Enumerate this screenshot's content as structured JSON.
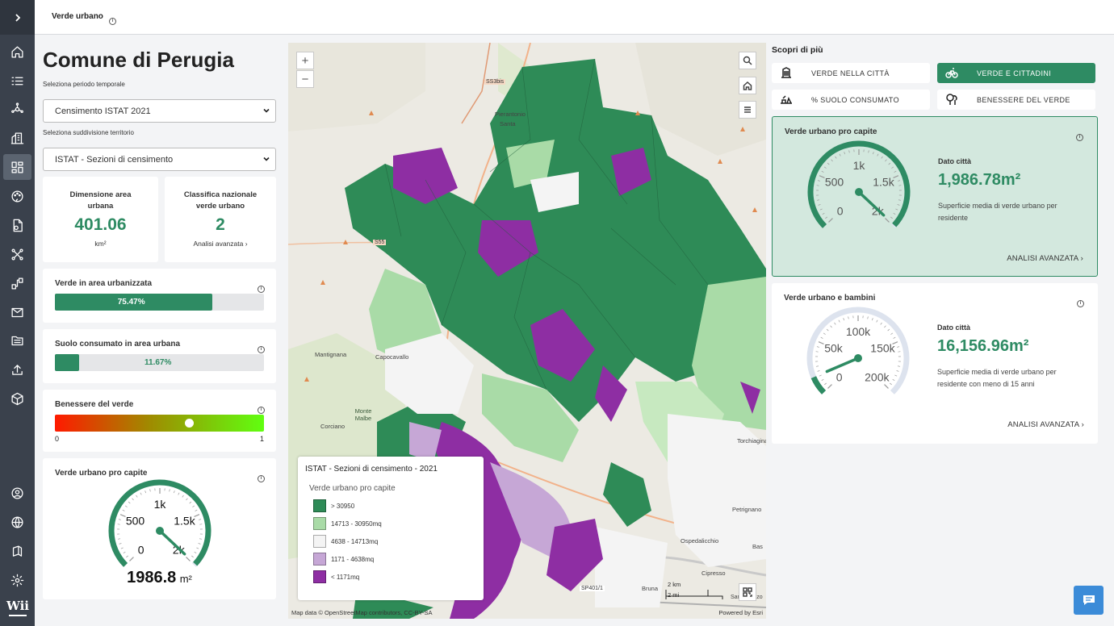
{
  "topbar": {
    "title": "Verde urbano"
  },
  "sidebar": {
    "items": [
      "home-icon",
      "list-icon",
      "network-icon",
      "buildings-icon",
      "dashboard-icon",
      "palette-icon",
      "document-icon",
      "connections-icon",
      "share-icon",
      "mail-icon",
      "folder-icon",
      "upload-icon",
      "cube-icon"
    ],
    "bottom": [
      "user-icon",
      "globe-icon",
      "book-icon",
      "settings-icon"
    ],
    "logo": "Wii"
  },
  "left": {
    "title": "Comune di Perugia",
    "period_label": "Seleziona periodo temporale",
    "period_value": "Censimento ISTAT 2021",
    "subdiv_label": "Seleziona suddivisione territorio",
    "subdiv_value": "ISTAT - Sezioni di censimento",
    "stat1": {
      "title": "Dimensione area urbana",
      "value": "401.06",
      "unit": "km²"
    },
    "stat2": {
      "title": "Classifica nazionale verde urbano",
      "value": "2",
      "link": "Analisi avanzata ›"
    },
    "green_urban": {
      "title": "Verde in area urbanizzata",
      "value": "75.47%",
      "fraction": 0.7547
    },
    "soil": {
      "title": "Suolo consumato in area urbana",
      "value": "11.67%",
      "fraction": 0.1167
    },
    "wellbeing": {
      "title": "Benessere del verde",
      "min": "0",
      "max": "1",
      "value": 0.64
    },
    "gauge": {
      "title": "Verde urbano pro capite",
      "ticks": [
        "0",
        "500",
        "1k",
        "1.5k",
        "2k"
      ],
      "value_text": "1986.8",
      "unit": "m²",
      "value": 1986.8,
      "max": 2000
    }
  },
  "map": {
    "zoom_in": "+",
    "zoom_out": "−",
    "legend_title": "ISTAT - Sezioni di censimento - 2021",
    "legend_subtitle": "Verde urbano pro capite",
    "legend": [
      {
        "label": "> 30950",
        "color": "#2e8b57"
      },
      {
        "label": "14713 - 30950mq",
        "color": "#a9dba7"
      },
      {
        "label": "4638 - 14713mq",
        "color": "#f4f4f4"
      },
      {
        "label": "1171 - 4638mq",
        "color": "#c6a7d6"
      },
      {
        "label": "< 1171mq",
        "color": "#8e2ea3"
      }
    ],
    "places": [
      "Pierantonio",
      "Santa",
      "SS3bis",
      "Mantignana",
      "Capocavallo",
      "Monte Malbe",
      "Corciano",
      "Ponte",
      "Ospedalicchio",
      "Petrignano",
      "Torchiagina",
      "Cipresso",
      "Bruna",
      "SP401/1",
      "Bas",
      "San Lorenzo",
      "S55",
      "Civitella"
    ],
    "scale": [
      "2 km",
      "2 mi"
    ],
    "attribution": "Map data © OpenStreetMap contributors, CC-BY-SA",
    "powered": "Powered by Esri"
  },
  "right": {
    "discover": "Scopri di più",
    "buttons": [
      {
        "label": "VERDE NELLA CITTÀ",
        "active": false
      },
      {
        "label": "VERDE E CITTADINI",
        "active": true
      },
      {
        "label": "% SUOLO CONSUMATO",
        "active": false
      },
      {
        "label": "BENESSERE DEL VERDE",
        "active": false
      }
    ],
    "kpi1": {
      "title": "Verde urbano pro capite",
      "ticks": [
        "0",
        "500",
        "1k",
        "1.5k",
        "2k"
      ],
      "value": 1986.78,
      "max": 2000,
      "dc": "Dato città",
      "dv": "1,986.78m²",
      "desc": "Superficie media di verde urbano per residente",
      "link": "ANALISI AVANZATA ›"
    },
    "kpi2": {
      "title": "Verde urbano e bambini",
      "ticks": [
        "0",
        "50k",
        "100k",
        "150k",
        "200k"
      ],
      "value": 16156.96,
      "max": 200000,
      "dc": "Dato città",
      "dv": "16,156.96m²",
      "desc": "Superficie media di verde urbano per residente con meno di 15 anni",
      "link": "ANALISI AVANZATA ›"
    }
  },
  "colors": {
    "accent": "#2e8b63",
    "sidebar": "#3a414c",
    "gauge_track": "#dde3ee"
  }
}
